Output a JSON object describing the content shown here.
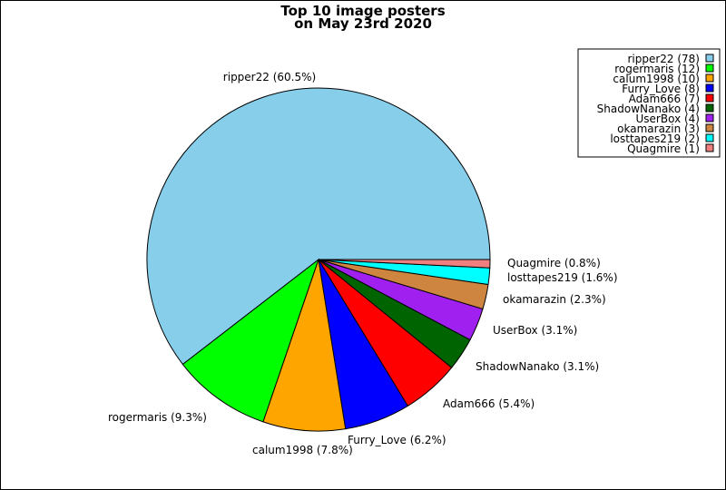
{
  "chart_data": {
    "type": "pie",
    "title_lines": [
      "Top 10 image posters",
      "on May 23rd 2020"
    ],
    "slices": [
      {
        "name": "ripper22",
        "value": 78,
        "percent": "60.5%",
        "color": "#87ceeb",
        "label": "ripper22 (60.5%)",
        "legend": "ripper22 (78)"
      },
      {
        "name": "rogermaris",
        "value": 12,
        "percent": "9.3%",
        "color": "#00ff00",
        "label": "rogermaris (9.3%)",
        "legend": "rogermaris (12)"
      },
      {
        "name": "calum1998",
        "value": 10,
        "percent": "7.8%",
        "color": "#ffa500",
        "label": "calum1998 (7.8%)",
        "legend": "calum1998 (10)"
      },
      {
        "name": "Furry_Love",
        "value": 8,
        "percent": "6.2%",
        "color": "#0000ff",
        "label": "Furry_Love (6.2%)",
        "legend": "Furry_Love (8)"
      },
      {
        "name": "Adam666",
        "value": 7,
        "percent": "5.4%",
        "color": "#ff0000",
        "label": "Adam666 (5.4%)",
        "legend": "Adam666 (7)"
      },
      {
        "name": "ShadowNanako",
        "value": 4,
        "percent": "3.1%",
        "color": "#006400",
        "label": "ShadowNanako (3.1%)",
        "legend": "ShadowNanako (4)"
      },
      {
        "name": "UserBox",
        "value": 4,
        "percent": "3.1%",
        "color": "#a020f0",
        "label": "UserBox (3.1%)",
        "legend": "UserBox (4)"
      },
      {
        "name": "okamarazin",
        "value": 3,
        "percent": "2.3%",
        "color": "#cd853f",
        "label": "okamarazin (2.3%)",
        "legend": "okamarazin (3)"
      },
      {
        "name": "losttapes219",
        "value": 2,
        "percent": "1.6%",
        "color": "#00ffff",
        "label": "losttapes219 (1.6%)",
        "legend": "losttapes219 (2)"
      },
      {
        "name": "Quagmire",
        "value": 1,
        "percent": "0.8%",
        "color": "#f08080",
        "label": "Quagmire (0.8%)",
        "legend": "Quagmire (1)"
      }
    ],
    "start": "3 o'clock",
    "direction": "clockwise",
    "legend_position": "top-right"
  }
}
